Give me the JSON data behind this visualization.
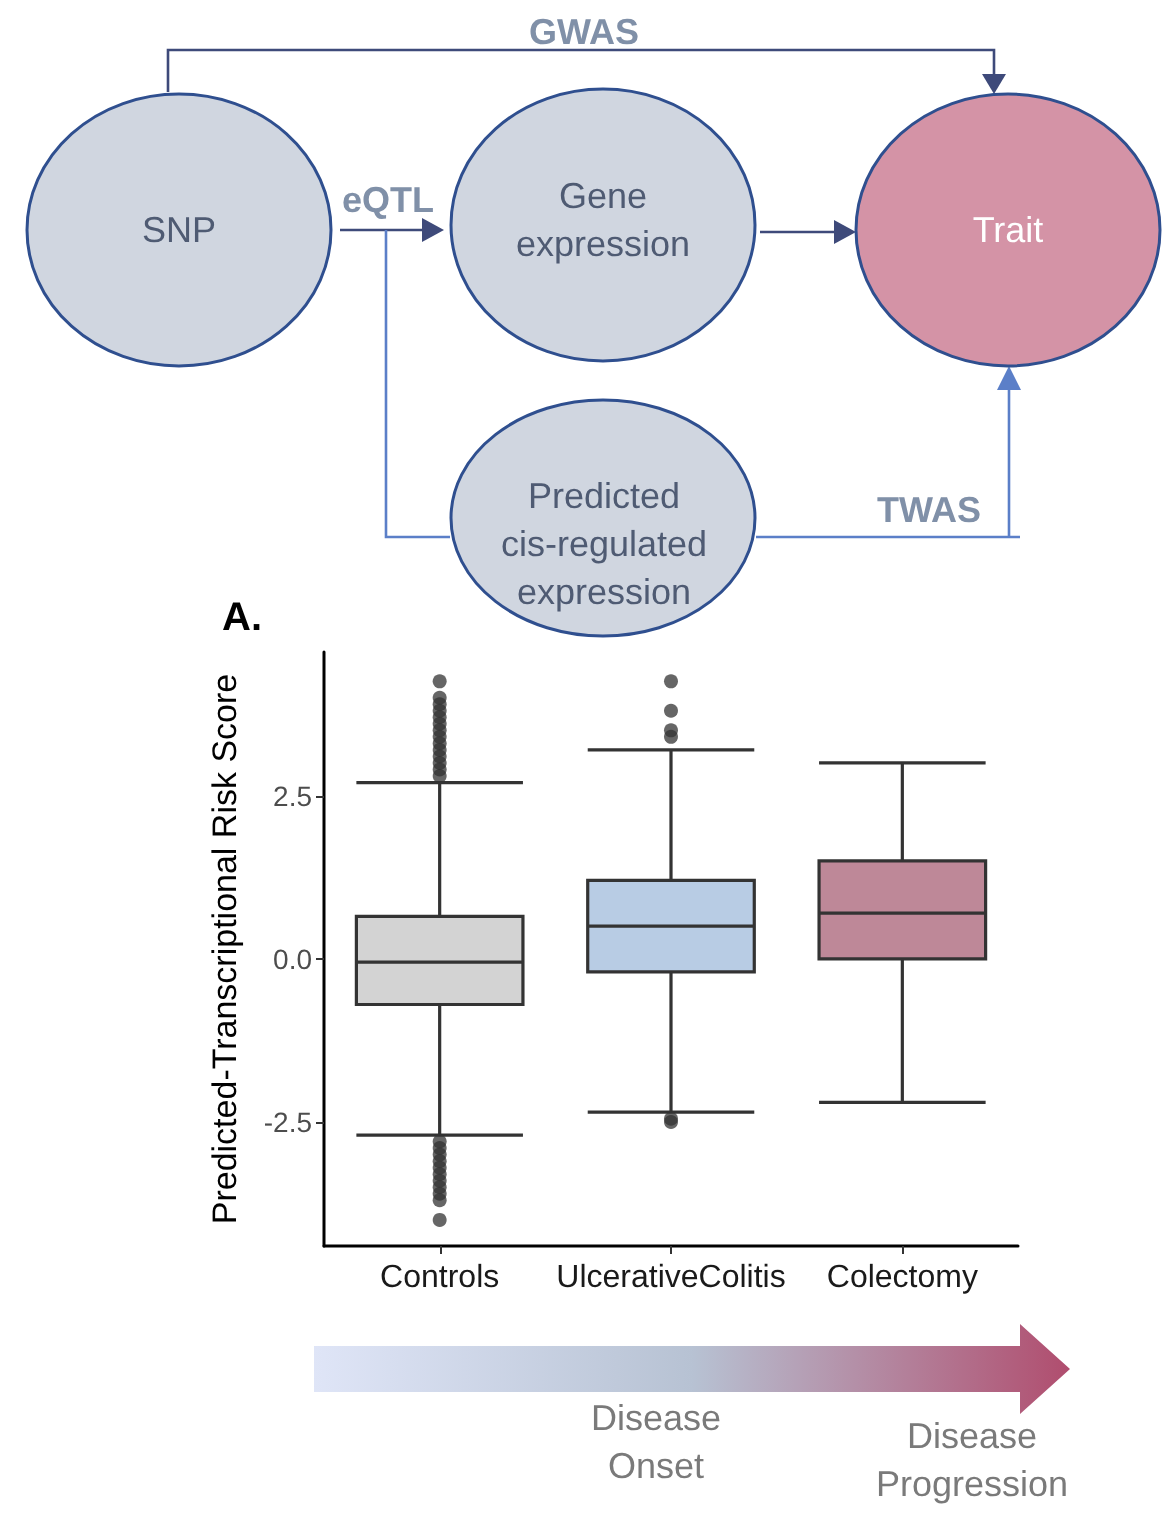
{
  "chart_data": {
    "type": "box",
    "title": "A.",
    "ylabel": "Predicted-Transcriptional Risk Score",
    "categories": [
      "Controls",
      "UlcerativeColitis",
      "Colectomy"
    ],
    "colors": [
      "#d3d3d3",
      "#b8cce4",
      "#be8898"
    ],
    "boxes": [
      {
        "low": -2.7,
        "q1": -0.7,
        "median": -0.05,
        "q3": 0.65,
        "high": 2.7,
        "outliers": [
          4.25,
          4.0,
          3.9,
          3.8,
          3.7,
          3.6,
          3.5,
          3.4,
          3.3,
          3.2,
          3.1,
          3.0,
          2.9,
          2.8,
          -2.8,
          -2.9,
          -3.0,
          -3.1,
          -3.2,
          -3.3,
          -3.4,
          -3.5,
          -3.6,
          -3.7,
          -4.0
        ]
      },
      {
        "low": -2.35,
        "q1": -0.2,
        "median": 0.5,
        "q3": 1.2,
        "high": 3.2,
        "outliers": [
          4.25,
          3.8,
          3.5,
          3.4,
          -2.45,
          -2.5
        ]
      },
      {
        "low": -2.2,
        "q1": 0.0,
        "median": 0.7,
        "q3": 1.5,
        "high": 3.0
      }
    ],
    "ylim": [
      -4.4,
      4.7
    ],
    "yticks": [
      -2.5,
      {
        "value": 0,
        "label": "0.0"
      },
      2.5
    ],
    "annotations": [
      "GWAS",
      "SNP",
      "eQTL",
      "Gene expression",
      "Trait",
      "Predicted cis-regulated expression",
      "TWAS",
      "Disease Onset",
      "Disease Progression"
    ]
  }
}
